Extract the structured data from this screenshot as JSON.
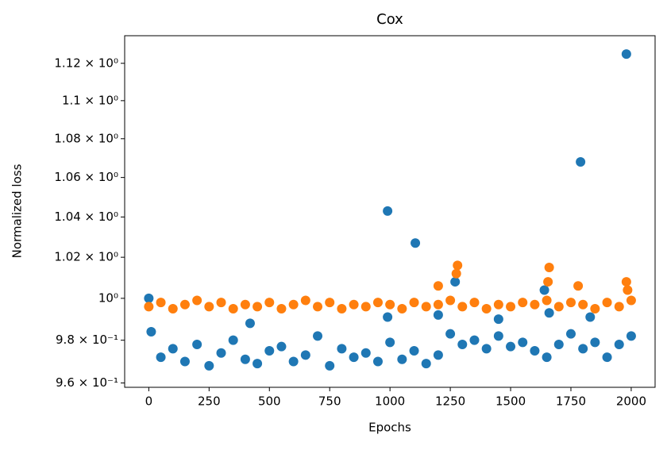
{
  "chart_data": {
    "type": "scatter",
    "title": "Cox",
    "x_label": "Epochs",
    "y_label": "Normalized loss",
    "log_y": true,
    "xlim": [
      -100,
      2099
    ],
    "ylim": [
      0.958,
      1.135
    ],
    "xticks": [
      0,
      250,
      500,
      750,
      1000,
      1250,
      1500,
      1750,
      2000
    ],
    "yticks": [
      {
        "value": 0.96,
        "label": "9.6 × 10⁻¹"
      },
      {
        "value": 0.98,
        "label": "9.8 × 10⁻¹"
      },
      {
        "value": 1,
        "label": "10⁰"
      },
      {
        "value": 1.02,
        "label": "1.02 × 10⁰"
      },
      {
        "value": 1.04,
        "label": "1.04 × 10⁰"
      },
      {
        "value": 1.06,
        "label": "1.06 × 10⁰"
      },
      {
        "value": 1.08,
        "label": "1.08 × 10⁰"
      },
      {
        "value": 1.1,
        "label": "1.1 × 10⁰"
      },
      {
        "value": 1.12,
        "label": "1.12 × 10⁰"
      }
    ],
    "series": [
      {
        "color": "#1f77b4",
        "x": [
          0,
          50,
          100,
          150,
          200,
          250,
          300,
          350,
          400,
          450,
          500,
          550,
          600,
          650,
          700,
          750,
          800,
          850,
          900,
          950,
          1000,
          1050,
          1100,
          1150,
          1200,
          1250,
          1300,
          1350,
          1400,
          1450,
          1500,
          1550,
          1600,
          1650,
          1700,
          1750,
          1800,
          1850,
          1900,
          1950,
          2000,
          420,
          990,
          990,
          1105,
          1200,
          1270,
          1450,
          1640,
          1790,
          1830,
          1980,
          10,
          1660
        ],
        "values": [
          1.0,
          0.972,
          0.976,
          0.97,
          0.978,
          0.968,
          0.974,
          0.98,
          0.971,
          0.969,
          0.975,
          0.977,
          0.97,
          0.973,
          0.982,
          0.968,
          0.976,
          0.972,
          0.974,
          0.97,
          0.979,
          0.971,
          0.975,
          0.969,
          0.973,
          0.983,
          0.978,
          0.98,
          0.976,
          0.982,
          0.977,
          0.979,
          0.975,
          0.972,
          0.978,
          0.983,
          0.976,
          0.979,
          0.972,
          0.978,
          0.982,
          0.988,
          1.043,
          0.991,
          1.027,
          0.992,
          1.008,
          0.99,
          1.004,
          1.068,
          0.991,
          1.125,
          0.984,
          0.993
        ]
      },
      {
        "color": "#ff7f0e",
        "x": [
          0,
          50,
          100,
          150,
          200,
          250,
          300,
          350,
          400,
          450,
          500,
          550,
          600,
          650,
          700,
          750,
          800,
          850,
          900,
          950,
          1000,
          1050,
          1100,
          1150,
          1200,
          1250,
          1300,
          1350,
          1400,
          1450,
          1500,
          1550,
          1600,
          1650,
          1700,
          1750,
          1800,
          1850,
          1900,
          1950,
          2000,
          1200,
          1280,
          1275,
          1660,
          1655,
          1780,
          1980,
          1985
        ],
        "values": [
          0.996,
          0.998,
          0.995,
          0.997,
          0.999,
          0.996,
          0.998,
          0.995,
          0.997,
          0.996,
          0.998,
          0.995,
          0.997,
          0.999,
          0.996,
          0.998,
          0.995,
          0.997,
          0.996,
          0.998,
          0.997,
          0.995,
          0.998,
          0.996,
          0.997,
          0.999,
          0.996,
          0.998,
          0.995,
          0.997,
          0.996,
          0.998,
          0.997,
          0.999,
          0.996,
          0.998,
          0.997,
          0.995,
          0.998,
          0.996,
          0.999,
          1.006,
          1.016,
          1.012,
          1.015,
          1.008,
          1.006,
          1.008,
          1.004
        ]
      }
    ]
  }
}
